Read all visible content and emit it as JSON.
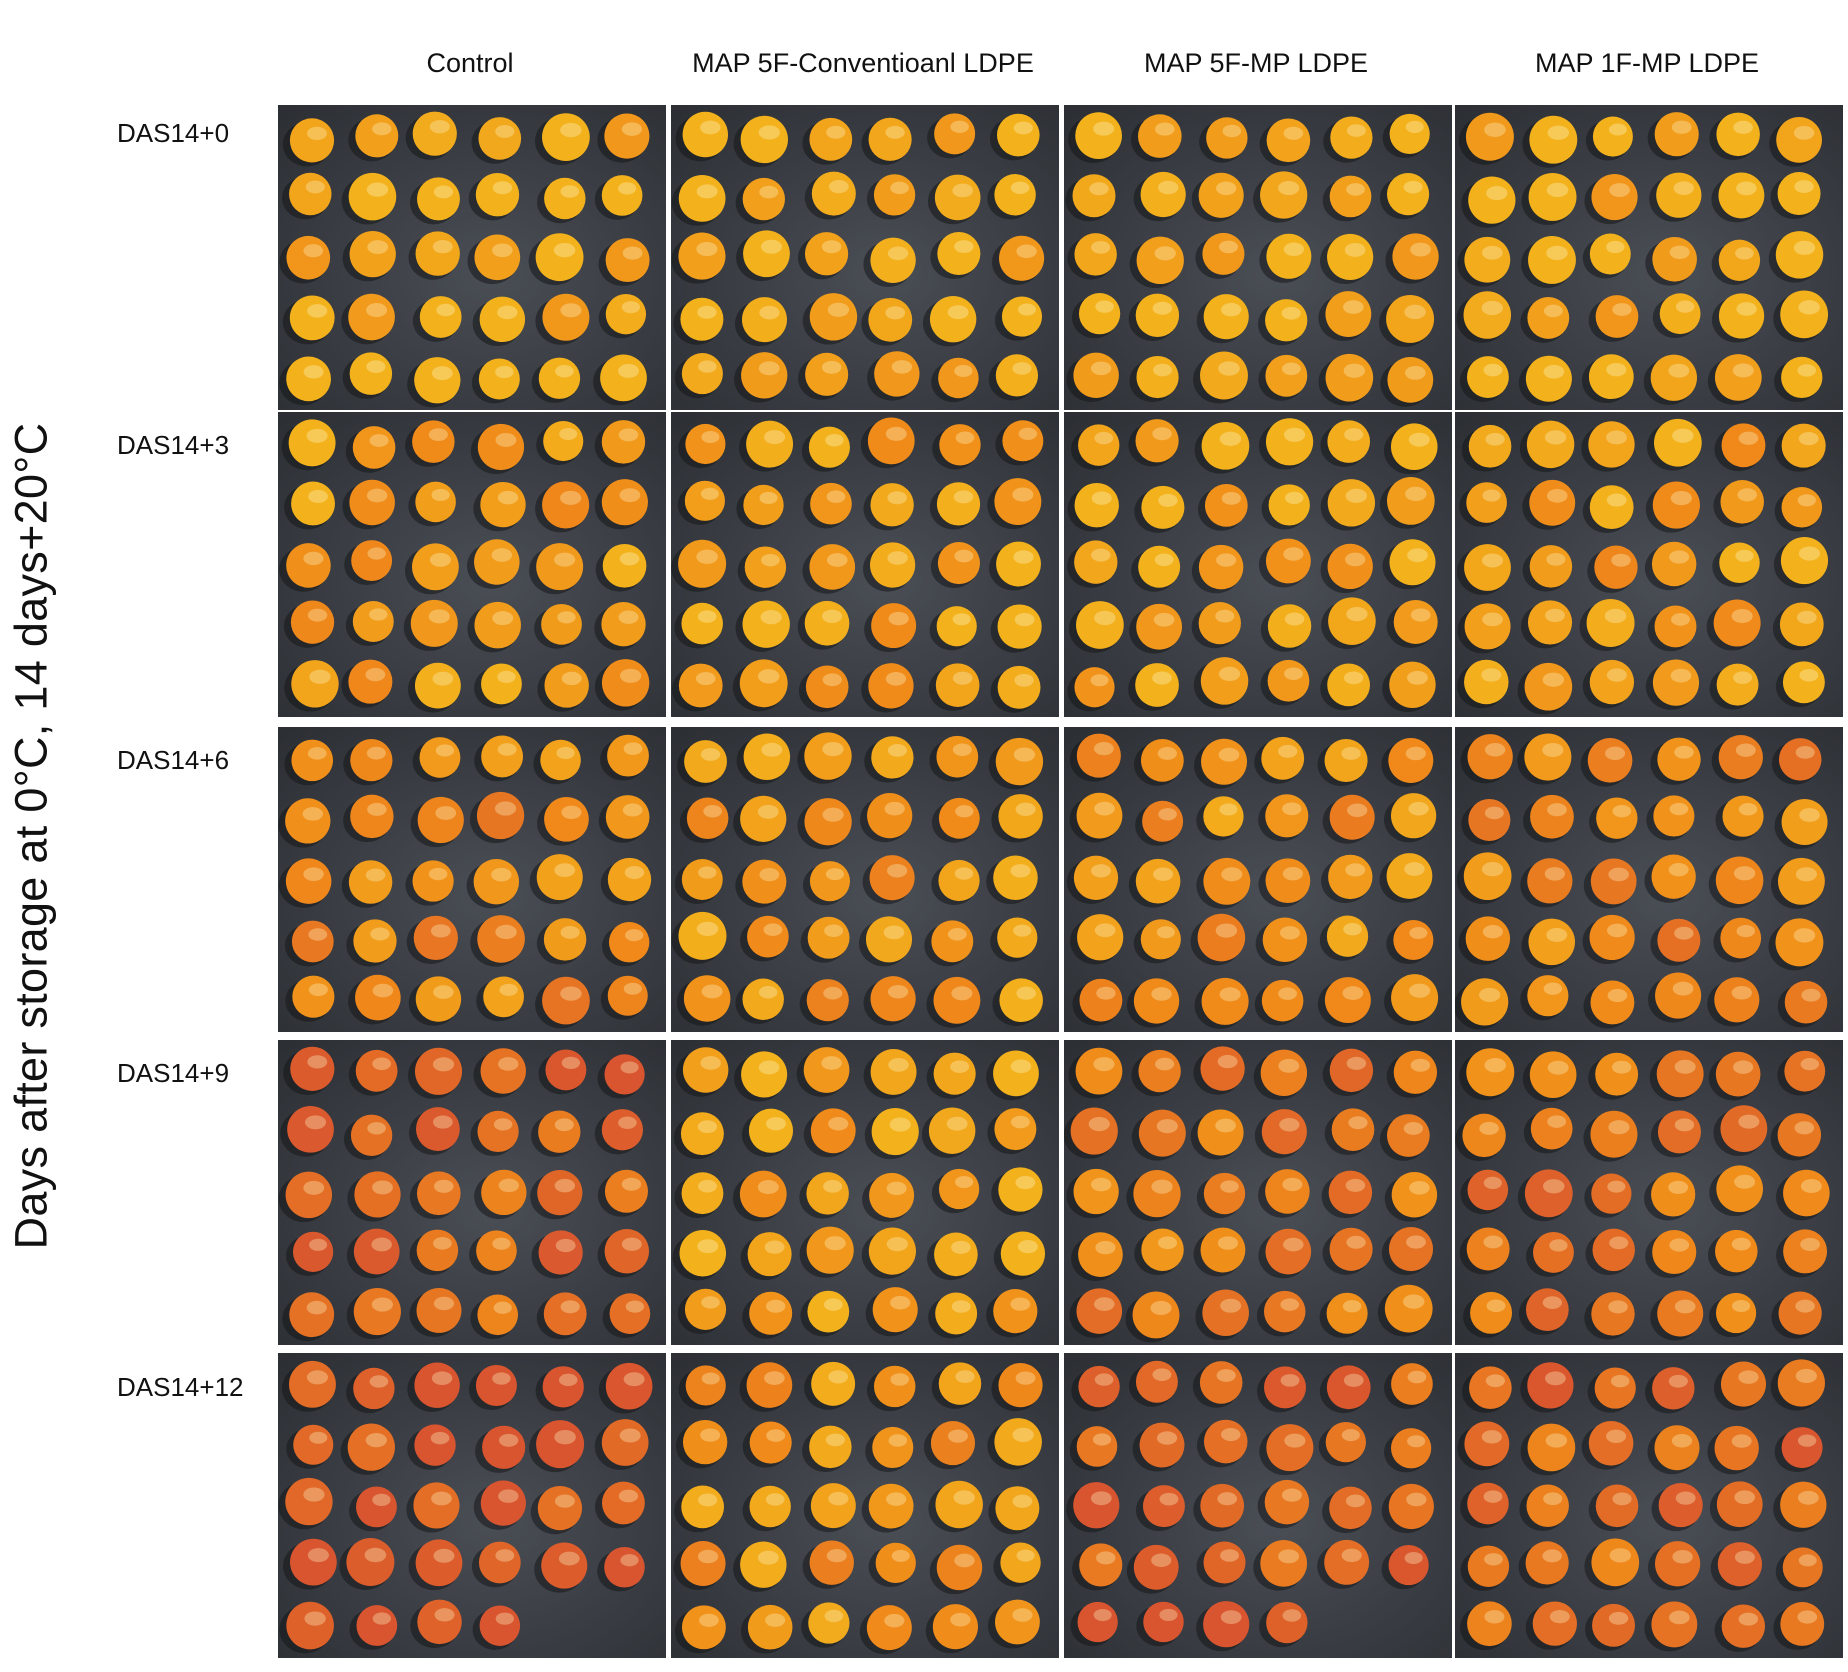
{
  "y_axis_label": "Days after storage at 0°C, 14 days+20°C",
  "columns": [
    "Control",
    "MAP 5F-Conventioanl LDPE",
    "MAP 5F-MP LDPE",
    "MAP 1F-MP LDPE"
  ],
  "rows": [
    "DAS14+0",
    "DAS14+3",
    "DAS14+6",
    "DAS14+9",
    "DAS14+12"
  ],
  "colors": {
    "background": "#ffffff",
    "tray": "#3a3d42",
    "fruit_yellow": "#f3b21c",
    "fruit_orange": "#f08a1a",
    "fruit_red": "#d9552f"
  },
  "fruit_counts": [
    [
      30,
      30,
      30,
      30
    ],
    [
      30,
      30,
      30,
      30
    ],
    [
      30,
      30,
      30,
      30
    ],
    [
      30,
      30,
      30,
      30
    ],
    [
      28,
      30,
      28,
      30
    ]
  ],
  "redness_levels": [
    [
      0.05,
      0.03,
      0.04,
      0.06
    ],
    [
      0.22,
      0.2,
      0.14,
      0.22
    ],
    [
      0.42,
      0.28,
      0.32,
      0.45
    ],
    [
      0.78,
      0.18,
      0.55,
      0.62
    ],
    [
      0.95,
      0.3,
      0.82,
      0.72
    ]
  ]
}
